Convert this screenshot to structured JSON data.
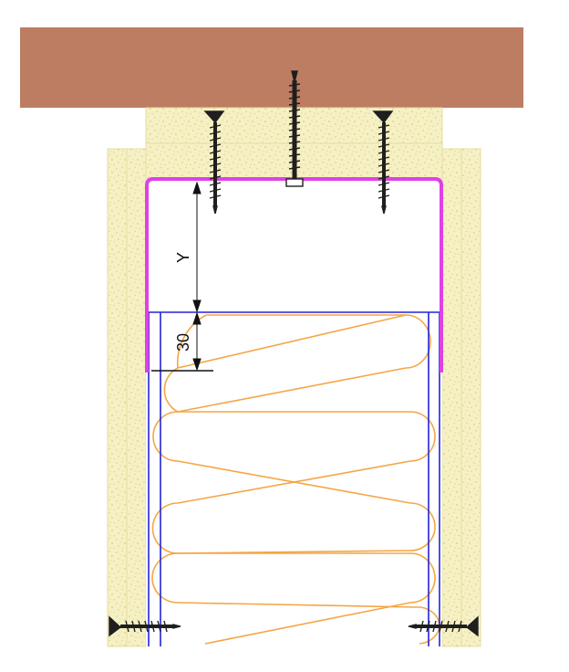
{
  "diagram": {
    "dimensions": [
      {
        "label": "Y"
      },
      {
        "label": "30"
      }
    ]
  },
  "colors": {
    "timber_beam": "#bd7d62",
    "gypsum_board": "#f6f1c4",
    "board_speckle": "#d9cf8a",
    "channel_profile": "#e040e6",
    "stud_frame": "#2323d6",
    "insulation": "#f4a646",
    "screw": "#1f1f1f"
  }
}
